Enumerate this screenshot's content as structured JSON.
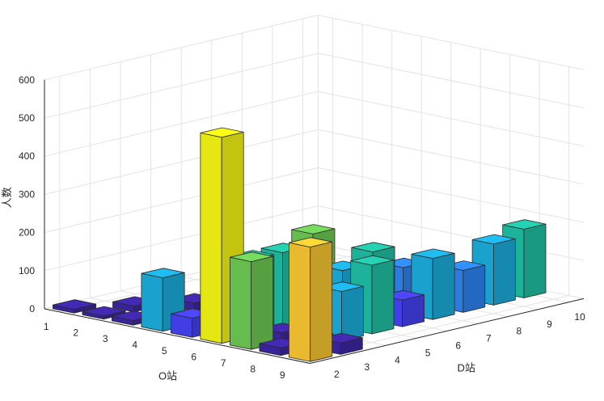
{
  "chart_data": {
    "type": "bar3d",
    "title": "",
    "o_axis_label": "O站",
    "d_axis_label": "D站",
    "z_axis_label": "人数",
    "o_ticks": [
      1,
      2,
      3,
      4,
      5,
      6,
      7,
      8,
      9
    ],
    "d_ticks": [
      2,
      3,
      4,
      5,
      6,
      7,
      8,
      9,
      10
    ],
    "z_ticks": [
      0,
      100,
      200,
      300,
      400,
      500,
      600
    ],
    "zlim": [
      0,
      600
    ],
    "grid": true,
    "colormap": [
      "#3e26a8",
      "#4743f7",
      "#2e87f7",
      "#1cb0e0",
      "#20c3a7",
      "#6fcd55",
      "#ccbb2d",
      "#fdca33",
      "#f9fb14"
    ],
    "bars": [
      {
        "o": 1,
        "d": 2,
        "value": 10
      },
      {
        "o": 2,
        "d": 2,
        "value": 8
      },
      {
        "o": 2,
        "d": 3,
        "value": 15
      },
      {
        "o": 3,
        "d": 2,
        "value": 12
      },
      {
        "o": 3,
        "d": 3,
        "value": 10
      },
      {
        "o": 3,
        "d": 4,
        "value": 20
      },
      {
        "o": 3,
        "d": 5,
        "value": 18
      },
      {
        "o": 3,
        "d": 6,
        "value": 15
      },
      {
        "o": 4,
        "d": 2,
        "value": 140
      },
      {
        "o": 4,
        "d": 3,
        "value": 12
      },
      {
        "o": 4,
        "d": 4,
        "value": 15
      },
      {
        "o": 4,
        "d": 5,
        "value": 22
      },
      {
        "o": 5,
        "d": 2,
        "value": 50
      },
      {
        "o": 5,
        "d": 3,
        "value": 40
      },
      {
        "o": 6,
        "d": 2,
        "value": 540
      },
      {
        "o": 6,
        "d": 3,
        "value": 200
      },
      {
        "o": 6,
        "d": 4,
        "value": 200
      },
      {
        "o": 6,
        "d": 5,
        "value": 230
      },
      {
        "o": 7,
        "d": 2,
        "value": 230
      },
      {
        "o": 7,
        "d": 3,
        "value": 25
      },
      {
        "o": 7,
        "d": 4,
        "value": 110
      },
      {
        "o": 7,
        "d": 5,
        "value": 150
      },
      {
        "o": 7,
        "d": 6,
        "value": 180
      },
      {
        "o": 7,
        "d": 7,
        "value": 120
      },
      {
        "o": 8,
        "d": 2,
        "value": 20
      },
      {
        "o": 8,
        "d": 3,
        "value": 25
      },
      {
        "o": 8,
        "d": 4,
        "value": 130
      },
      {
        "o": 8,
        "d": 5,
        "value": 180
      },
      {
        "o": 8,
        "d": 6,
        "value": 70
      },
      {
        "o": 8,
        "d": 7,
        "value": 160
      },
      {
        "o": 8,
        "d": 8,
        "value": 110
      },
      {
        "o": 8,
        "d": 9,
        "value": 160
      },
      {
        "o": 8,
        "d": 10,
        "value": 180
      },
      {
        "o": 9,
        "d": 2,
        "value": 300
      },
      {
        "o": 9,
        "d": 3,
        "value": 30
      }
    ]
  }
}
